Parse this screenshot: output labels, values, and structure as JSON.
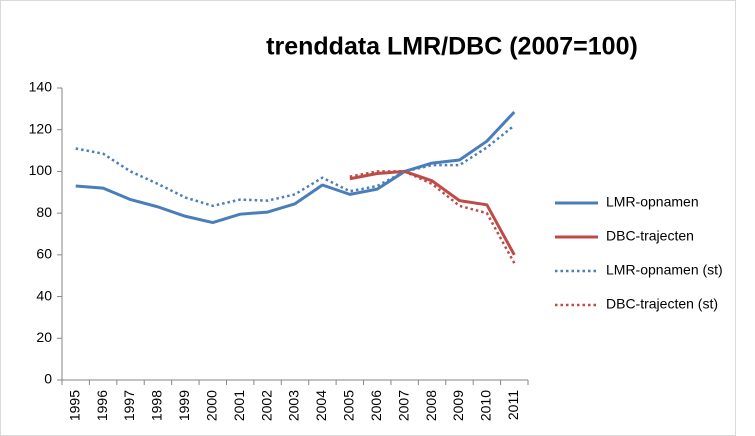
{
  "chart_data": {
    "type": "line",
    "title": "trenddata LMR/DBC (2007=100)",
    "categories": [
      "1995",
      "1996",
      "1997",
      "1998",
      "1999",
      "2000",
      "2001",
      "2002",
      "2003",
      "2004",
      "2005",
      "2006",
      "2007",
      "2008",
      "2009",
      "2010",
      "2011"
    ],
    "series": [
      {
        "name": "LMR-opnamen",
        "color": "#4a7ebb",
        "style": "solid",
        "values": [
          93,
          92,
          86.5,
          83,
          78.5,
          75.5,
          79.5,
          80.5,
          84.5,
          93.5,
          89,
          91.5,
          100,
          104,
          105.5,
          114.5,
          128.5
        ]
      },
      {
        "name": "DBC-trajecten",
        "color": "#be4b48",
        "style": "solid",
        "values": [
          null,
          null,
          null,
          null,
          null,
          null,
          null,
          null,
          null,
          null,
          96.5,
          99,
          100,
          95.5,
          86,
          84,
          60
        ]
      },
      {
        "name": "LMR-opnamen (st)",
        "color": "#4a7ebb",
        "style": "dotted",
        "values": [
          111,
          108.5,
          100,
          94,
          87.5,
          83.5,
          86.5,
          86,
          89,
          97,
          90.5,
          93,
          100,
          103,
          103,
          111.5,
          122
        ]
      },
      {
        "name": "DBC-trajecten (st)",
        "color": "#be4b48",
        "style": "dotted",
        "values": [
          null,
          null,
          null,
          null,
          null,
          null,
          null,
          null,
          null,
          null,
          97.5,
          100,
          100,
          94,
          83.5,
          80,
          56
        ]
      }
    ],
    "ylim": [
      0,
      140
    ],
    "yticks": [
      0,
      20,
      40,
      60,
      80,
      100,
      120,
      140
    ],
    "grid": false,
    "legend": "right"
  }
}
